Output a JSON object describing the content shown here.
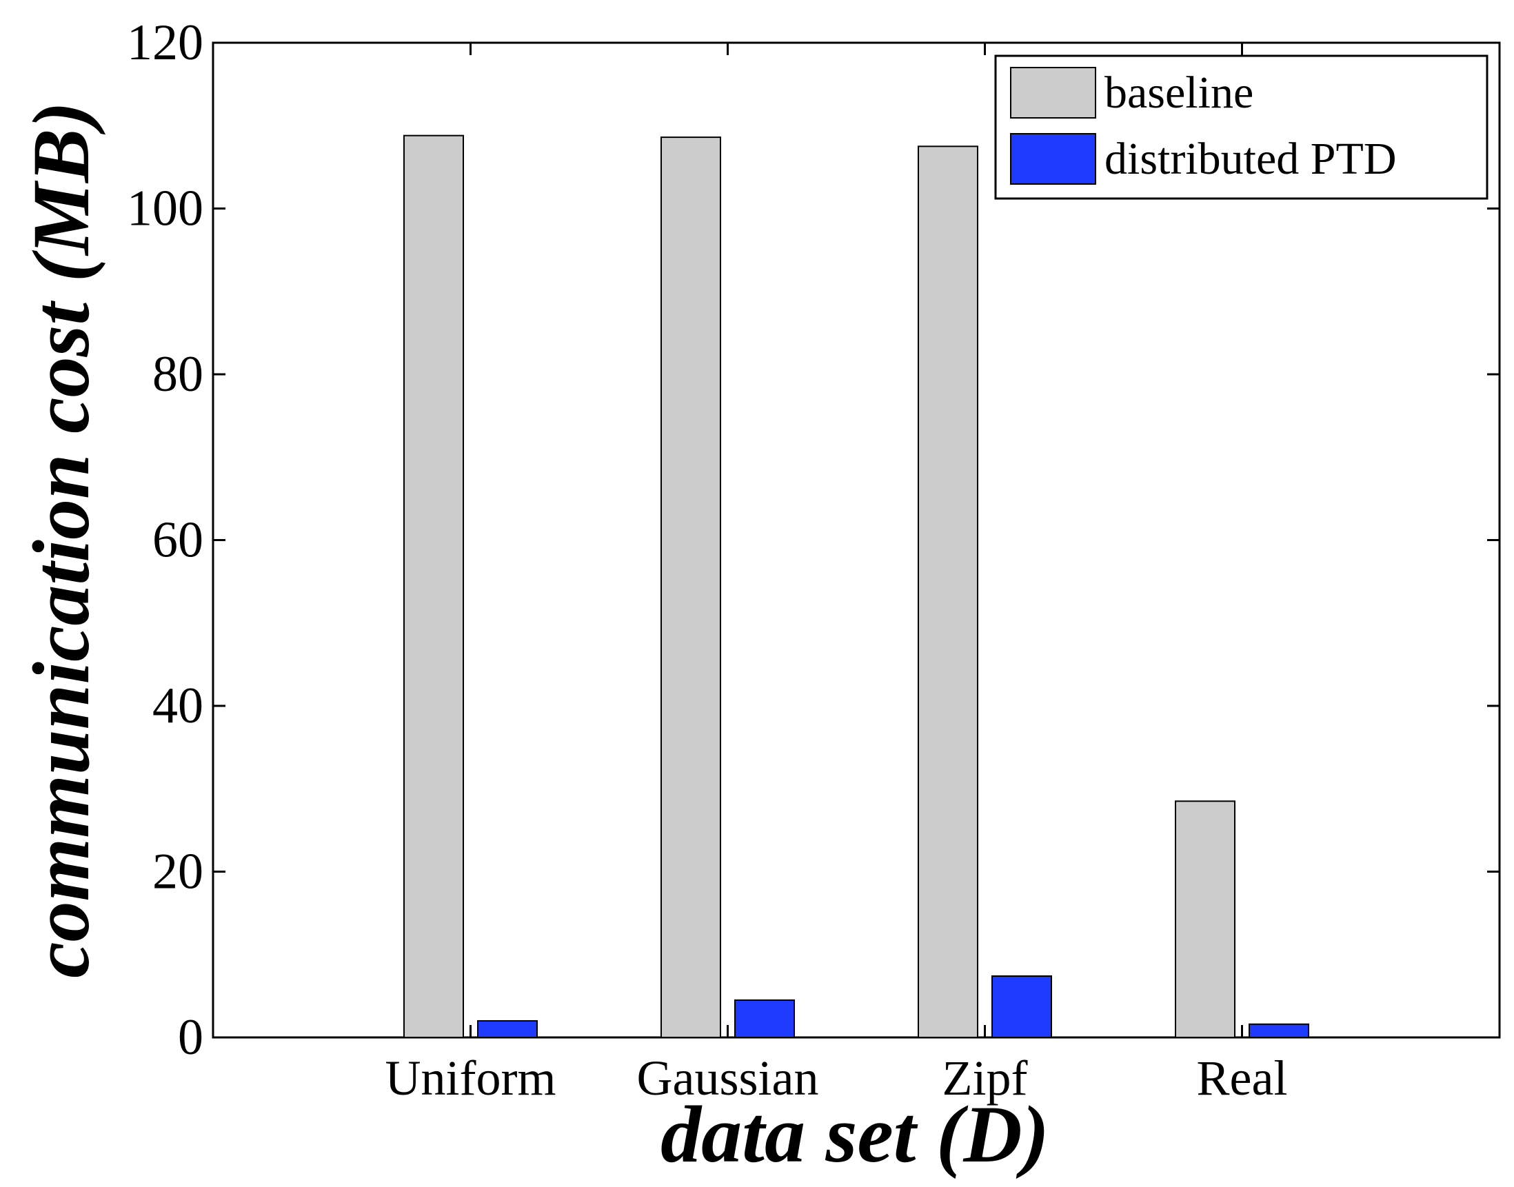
{
  "chart_data": {
    "type": "bar",
    "title": "",
    "xlabel": "data set (D)",
    "ylabel": "communication cost (MB)",
    "categories": [
      "Uniform",
      "Gaussian",
      "Zipf",
      "Real"
    ],
    "series": [
      {
        "name": "baseline",
        "color": "#cccccc",
        "values": [
          108.8,
          108.6,
          107.5,
          28.5
        ]
      },
      {
        "name": "distributed PTD",
        "color": "#1f3bff",
        "values": [
          2.0,
          4.5,
          7.4,
          1.6
        ]
      }
    ],
    "ylim": [
      0,
      120
    ],
    "yticks": [
      "0",
      "20",
      "40",
      "60",
      "80",
      "100",
      "120"
    ],
    "grid": false,
    "legend_position": "top-right"
  }
}
